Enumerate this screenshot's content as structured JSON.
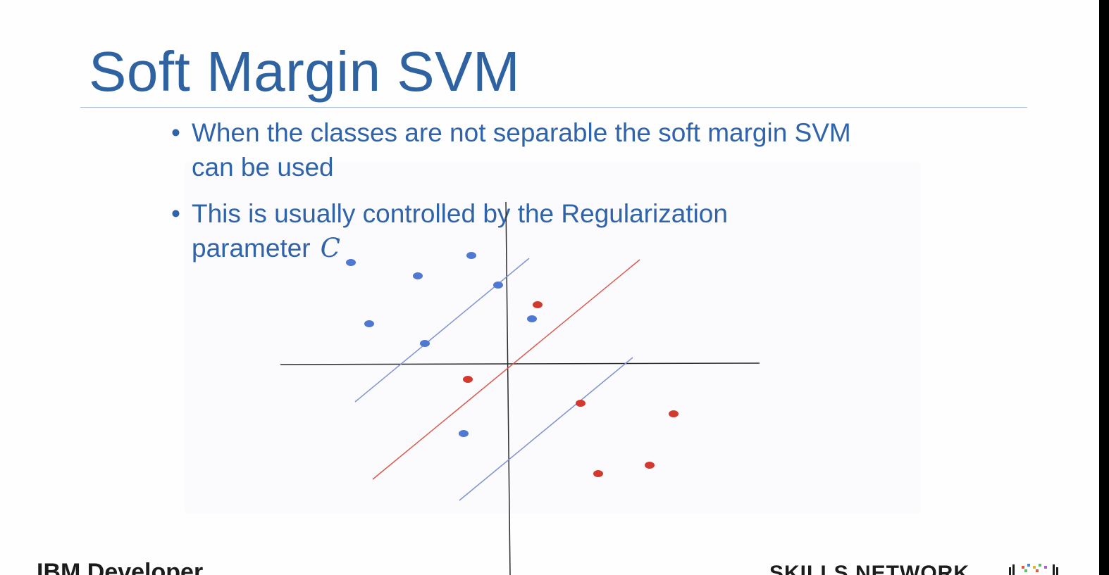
{
  "slide": {
    "title": "Soft Margin SVM",
    "bullets": [
      {
        "marker": "•",
        "text": "When the  classes are not separable the soft margin SVM can be used",
        "symbol": ""
      },
      {
        "marker": "•",
        "text": "This is usually controlled by the Regularization parameter",
        "symbol": "C"
      }
    ]
  },
  "diagram": {
    "class_colors": {
      "blue": "#4f78d2",
      "red": "#d23a2e"
    },
    "line_colors": {
      "axes": "#2b2b2b",
      "decision_boundary": "#d85a4f",
      "margins": "#8093d0"
    }
  },
  "footer": {
    "left_logo": "IBM Developer",
    "right_logo": "SKILLS NETWORK"
  }
}
